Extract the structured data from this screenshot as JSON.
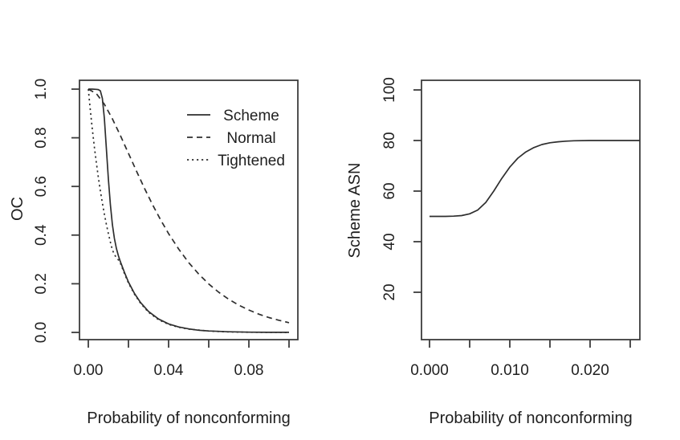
{
  "figure": {
    "background": "#ffffff",
    "curve_color": "#2e2e2e",
    "axis_color": "#3d3d3d",
    "text_color": "#1f1f1f"
  },
  "chart_data": [
    {
      "type": "line",
      "title": "",
      "xlabel": "Probability of nonconforming",
      "ylabel": "OC",
      "xlim": [
        -0.0044,
        0.1044
      ],
      "ylim": [
        -0.0297,
        1.0363
      ],
      "grid": "off",
      "x_ticks": [
        {
          "v": 0.0,
          "label": "0.00"
        },
        {
          "v": 0.02,
          "label": ""
        },
        {
          "v": 0.04,
          "label": "0.04"
        },
        {
          "v": 0.06,
          "label": ""
        },
        {
          "v": 0.08,
          "label": "0.08"
        },
        {
          "v": 0.1,
          "label": ""
        }
      ],
      "y_ticks": [
        {
          "v": 0.0,
          "label": "0.0"
        },
        {
          "v": 0.2,
          "label": "0.2"
        },
        {
          "v": 0.4,
          "label": "0.4"
        },
        {
          "v": 0.6,
          "label": "0.6"
        },
        {
          "v": 0.8,
          "label": "0.8"
        },
        {
          "v": 1.0,
          "label": "1.0"
        }
      ],
      "legend": {
        "position": "topright",
        "entries": [
          {
            "label": "Scheme",
            "style": "solid"
          },
          {
            "label": "Normal",
            "style": "dashed"
          },
          {
            "label": "Tightened",
            "style": "dotted"
          }
        ]
      },
      "series": [
        {
          "name": "Scheme",
          "style": "solid",
          "points": [
            [
              0.0,
              1.0
            ],
            [
              0.002,
              1.0
            ],
            [
              0.004,
              0.999
            ],
            [
              0.005,
              0.998
            ],
            [
              0.006,
              0.993
            ],
            [
              0.007,
              0.962
            ],
            [
              0.008,
              0.88
            ],
            [
              0.009,
              0.755
            ],
            [
              0.01,
              0.63
            ],
            [
              0.011,
              0.525
            ],
            [
              0.012,
              0.443
            ],
            [
              0.013,
              0.386
            ],
            [
              0.014,
              0.345
            ],
            [
              0.015,
              0.315
            ],
            [
              0.016,
              0.29
            ],
            [
              0.018,
              0.247
            ],
            [
              0.02,
              0.207
            ],
            [
              0.023,
              0.16
            ],
            [
              0.026,
              0.123
            ],
            [
              0.03,
              0.086
            ],
            [
              0.035,
              0.055
            ],
            [
              0.04,
              0.035
            ],
            [
              0.045,
              0.0225
            ],
            [
              0.05,
              0.0145
            ],
            [
              0.055,
              0.009
            ],
            [
              0.06,
              0.006
            ],
            [
              0.07,
              0.0025
            ],
            [
              0.08,
              0.001
            ],
            [
              0.09,
              0.0004
            ],
            [
              0.1,
              0.0002
            ]
          ]
        },
        {
          "name": "Normal",
          "style": "dashed",
          "points": [
            [
              0.0,
              1.0
            ],
            [
              0.004,
              0.982
            ],
            [
              0.008,
              0.938
            ],
            [
              0.012,
              0.878
            ],
            [
              0.016,
              0.809
            ],
            [
              0.02,
              0.736
            ],
            [
              0.024,
              0.663
            ],
            [
              0.028,
              0.592
            ],
            [
              0.032,
              0.525
            ],
            [
              0.036,
              0.463
            ],
            [
              0.04,
              0.406
            ],
            [
              0.045,
              0.343
            ],
            [
              0.05,
              0.287
            ],
            [
              0.055,
              0.24
            ],
            [
              0.06,
              0.199
            ],
            [
              0.065,
              0.165
            ],
            [
              0.07,
              0.136
            ],
            [
              0.075,
              0.112
            ],
            [
              0.08,
              0.092
            ],
            [
              0.085,
              0.075
            ],
            [
              0.09,
              0.061
            ],
            [
              0.095,
              0.05
            ],
            [
              0.1,
              0.04
            ]
          ]
        },
        {
          "name": "Tightened",
          "style": "dotted",
          "points": [
            [
              0.0,
              1.0
            ],
            [
              0.001,
              0.914
            ],
            [
              0.002,
              0.835
            ],
            [
              0.003,
              0.763
            ],
            [
              0.004,
              0.698
            ],
            [
              0.005,
              0.637
            ],
            [
              0.006,
              0.582
            ],
            [
              0.007,
              0.532
            ],
            [
              0.008,
              0.486
            ],
            [
              0.009,
              0.444
            ],
            [
              0.01,
              0.406
            ],
            [
              0.011,
              0.371
            ],
            [
              0.012,
              0.339
            ],
            [
              0.013,
              0.32
            ],
            [
              0.014,
              0.307
            ],
            [
              0.015,
              0.298
            ],
            [
              0.016,
              0.284
            ],
            [
              0.018,
              0.242
            ],
            [
              0.02,
              0.203
            ],
            [
              0.023,
              0.157
            ],
            [
              0.026,
              0.12
            ],
            [
              0.03,
              0.083
            ],
            [
              0.035,
              0.052
            ],
            [
              0.04,
              0.033
            ],
            [
              0.045,
              0.021
            ],
            [
              0.05,
              0.0135
            ],
            [
              0.06,
              0.0055
            ],
            [
              0.07,
              0.002
            ],
            [
              0.08,
              0.0008
            ],
            [
              0.09,
              0.0003
            ],
            [
              0.1,
              0.0001
            ]
          ]
        }
      ]
    },
    {
      "type": "line",
      "title": "",
      "xlabel": "Probability of nonconforming",
      "ylabel": "Scheme ASN",
      "xlim": [
        -0.001,
        0.0262
      ],
      "ylim": [
        1.27,
        103.8
      ],
      "grid": "off",
      "x_ticks": [
        {
          "v": 0.0,
          "label": "0.000"
        },
        {
          "v": 0.005,
          "label": ""
        },
        {
          "v": 0.01,
          "label": "0.010"
        },
        {
          "v": 0.015,
          "label": ""
        },
        {
          "v": 0.02,
          "label": "0.020"
        },
        {
          "v": 0.025,
          "label": ""
        }
      ],
      "y_ticks": [
        {
          "v": 20,
          "label": "20"
        },
        {
          "v": 40,
          "label": "40"
        },
        {
          "v": 60,
          "label": "60"
        },
        {
          "v": 80,
          "label": "80"
        },
        {
          "v": 100,
          "label": "100"
        }
      ],
      "series": [
        {
          "name": "Scheme ASN",
          "style": "solid",
          "points": [
            [
              0.0,
              50
            ],
            [
              0.002,
              50
            ],
            [
              0.003,
              50.1
            ],
            [
              0.004,
              50.3
            ],
            [
              0.005,
              51.0
            ],
            [
              0.006,
              52.5
            ],
            [
              0.007,
              55.5
            ],
            [
              0.008,
              60.0
            ],
            [
              0.009,
              65.0
            ],
            [
              0.01,
              69.5
            ],
            [
              0.011,
              73.0
            ],
            [
              0.012,
              75.5
            ],
            [
              0.013,
              77.2
            ],
            [
              0.014,
              78.4
            ],
            [
              0.015,
              79.1
            ],
            [
              0.016,
              79.5
            ],
            [
              0.017,
              79.75
            ],
            [
              0.018,
              79.9
            ],
            [
              0.02,
              80
            ],
            [
              0.022,
              80
            ],
            [
              0.024,
              80
            ],
            [
              0.0262,
              80
            ]
          ]
        }
      ]
    }
  ]
}
